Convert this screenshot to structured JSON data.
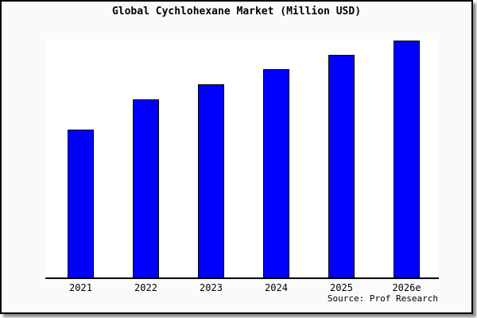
{
  "title": "Global Cychlohexane Market (Million USD)",
  "source_note": "Source: Prof Research",
  "colors": {
    "bar_fill": "#0000ff",
    "bar_border": "#000000",
    "figure_bg": "#fafafa",
    "plot_bg": "#ffffff",
    "axis": "#000000",
    "frame_border": "#000000",
    "text": "#000000"
  },
  "chart_data": {
    "type": "bar",
    "title": "Global Cychlohexane Market (Million USD)",
    "categories": [
      "2021",
      "2022",
      "2023",
      "2024",
      "2025",
      "2026e"
    ],
    "values": [
      62.1,
      74.8,
      81.2,
      87.5,
      93.3,
      99.5
    ],
    "value_note": "no numeric y-axis or data labels shown in the image; values are bar heights as percent of plot height",
    "xlabel": "",
    "ylabel": "",
    "ylim": [
      0,
      100
    ],
    "grid": false,
    "legend": false,
    "axes_shown": [
      "bottom"
    ],
    "annotations": [
      "Source: Prof Research"
    ]
  }
}
